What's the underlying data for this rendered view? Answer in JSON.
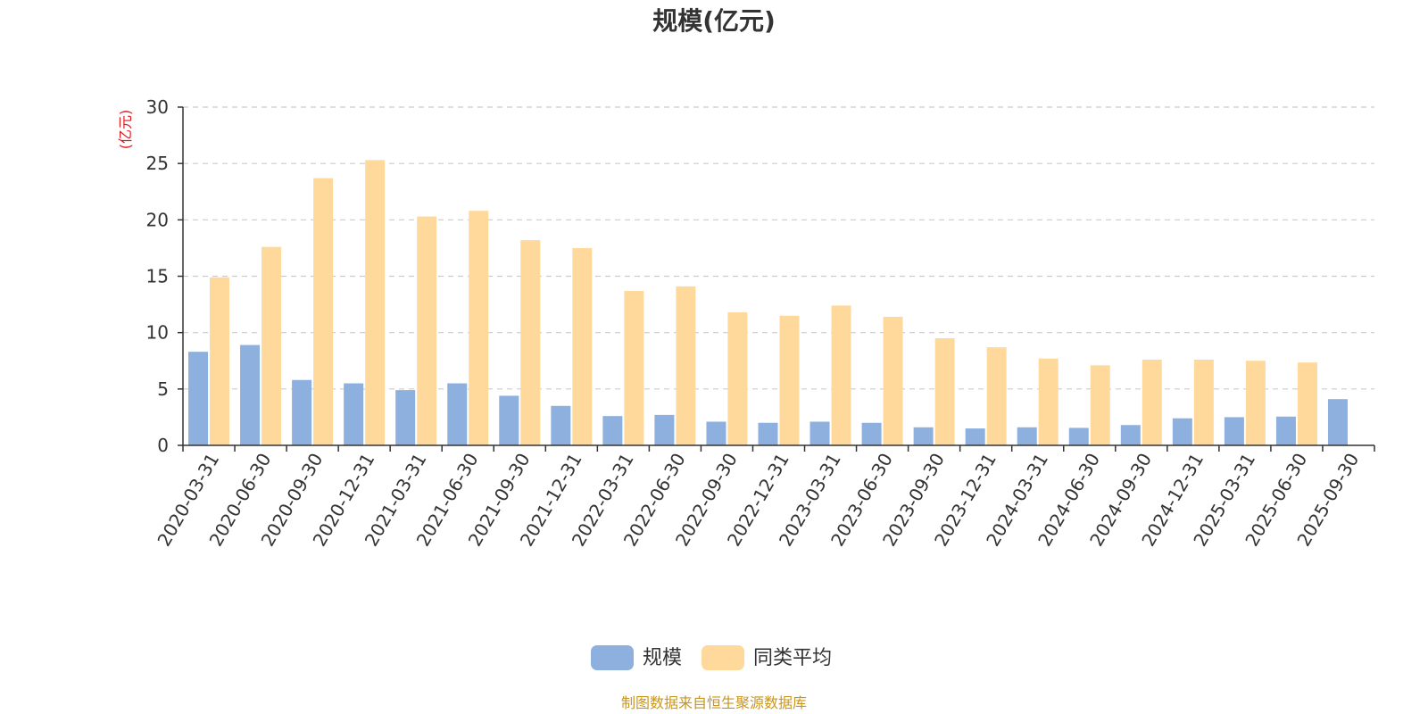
{
  "chart_data": {
    "type": "bar",
    "title": "规模(亿元)",
    "ylabel": "(亿元)",
    "xlabel": "",
    "ylim": [
      0,
      30
    ],
    "yticks": [
      0,
      5,
      10,
      15,
      20,
      25,
      30
    ],
    "grid": true,
    "legend_position": "bottom",
    "categories": [
      "2020-03-31",
      "2020-06-30",
      "2020-09-30",
      "2020-12-31",
      "2021-03-31",
      "2021-06-30",
      "2021-09-30",
      "2021-12-31",
      "2022-03-31",
      "2022-06-30",
      "2022-09-30",
      "2022-12-31",
      "2023-03-31",
      "2023-06-30",
      "2023-09-30",
      "2023-12-31",
      "2024-03-31",
      "2024-06-30",
      "2024-09-30",
      "2024-12-31",
      "2025-03-31",
      "2025-06-30",
      "2025-09-30"
    ],
    "series": [
      {
        "name": "规模",
        "color": "#8eb0de",
        "values": [
          8.3,
          8.9,
          5.8,
          5.5,
          4.9,
          5.5,
          4.4,
          3.5,
          2.6,
          2.7,
          2.1,
          2.0,
          2.1,
          2.0,
          1.6,
          1.5,
          1.6,
          1.55,
          1.8,
          2.4,
          2.5,
          2.55,
          4.1
        ]
      },
      {
        "name": "同类平均",
        "color": "#ffd99b",
        "values": [
          14.9,
          17.6,
          23.7,
          25.3,
          20.3,
          20.8,
          18.2,
          17.5,
          13.7,
          14.1,
          11.8,
          11.5,
          12.4,
          11.4,
          9.5,
          8.7,
          7.7,
          7.1,
          7.6,
          7.6,
          7.5,
          7.35,
          null
        ]
      }
    ]
  },
  "source": "制图数据来自恒生聚源数据库"
}
